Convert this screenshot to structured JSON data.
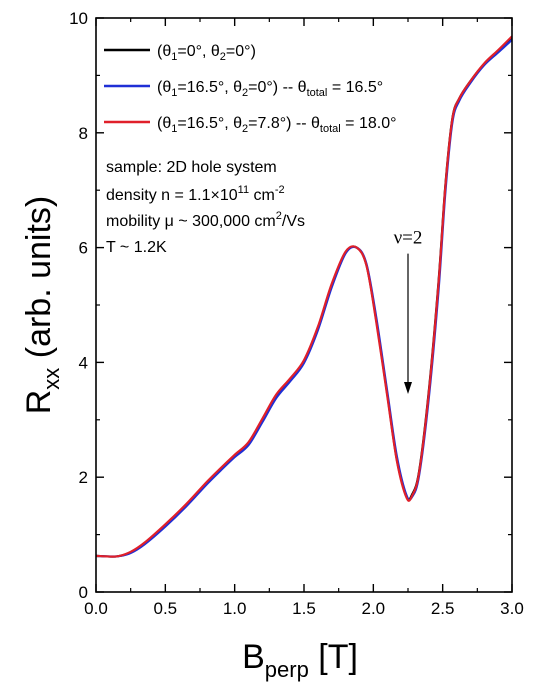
{
  "chart_data": {
    "type": "line",
    "xlabel": {
      "main": "B",
      "sub": "perp",
      "unit": " [T]"
    },
    "ylabel": {
      "main": "R",
      "sub": "xx",
      "unit": " (arb. units)"
    },
    "xlim": [
      0.0,
      3.0
    ],
    "ylim": [
      0,
      10
    ],
    "xticks": [
      0.0,
      0.5,
      1.0,
      1.5,
      2.0,
      2.5,
      3.0
    ],
    "xtick_labels": [
      "0.0",
      "0.5",
      "1.0",
      "1.5",
      "2.0",
      "2.5",
      "3.0"
    ],
    "yticks": [
      0,
      2,
      4,
      6,
      8,
      10
    ],
    "ytick_labels": [
      "0",
      "2",
      "4",
      "6",
      "8",
      "10"
    ],
    "grid": false,
    "legend_position": "top-left",
    "series": [
      {
        "name": "(θ1=0°, θ2=0°)",
        "legend": {
          "pre": "(θ",
          "s1": "1",
          "mid": "=0°, θ",
          "s2": "2",
          "post": "=0°)"
        },
        "color": "#000000",
        "x": [
          0.0,
          0.15,
          0.25,
          0.35,
          0.5,
          0.65,
          0.8,
          0.9,
          1.0,
          1.1,
          1.2,
          1.3,
          1.4,
          1.5,
          1.6,
          1.7,
          1.8,
          1.88,
          1.95,
          2.02,
          2.1,
          2.17,
          2.24,
          2.28,
          2.33,
          2.4,
          2.47,
          2.52,
          2.57,
          2.62,
          2.7,
          2.8,
          2.9,
          3.0
        ],
        "y": [
          0.63,
          0.62,
          0.69,
          0.85,
          1.17,
          1.52,
          1.91,
          2.15,
          2.38,
          2.6,
          3.0,
          3.42,
          3.7,
          4.02,
          4.6,
          5.35,
          5.92,
          6.0,
          5.7,
          4.75,
          3.45,
          2.3,
          1.66,
          1.7,
          2.1,
          3.5,
          5.4,
          7.1,
          8.25,
          8.6,
          8.9,
          9.2,
          9.42,
          9.65
        ]
      },
      {
        "name": "(θ1=16.5°, θ2=0°) -- θtotal = 16.5°",
        "legend": {
          "pre": "(θ",
          "s1": "1",
          "mid": "=16.5°, θ",
          "s2": "2",
          "post": "=0°) -- θ",
          "s3": "total",
          "tail": " = 16.5°"
        },
        "color": "#1f2fd6",
        "x": [
          0.0,
          0.15,
          0.25,
          0.35,
          0.5,
          0.65,
          0.8,
          0.9,
          1.0,
          1.1,
          1.2,
          1.3,
          1.4,
          1.5,
          1.6,
          1.7,
          1.8,
          1.88,
          1.95,
          2.02,
          2.1,
          2.17,
          2.24,
          2.28,
          2.33,
          2.4,
          2.47,
          2.52,
          2.57,
          2.62,
          2.7,
          2.8,
          2.9,
          3.0
        ],
        "y": [
          0.63,
          0.62,
          0.68,
          0.83,
          1.14,
          1.49,
          1.88,
          2.12,
          2.35,
          2.56,
          2.96,
          3.38,
          3.67,
          3.99,
          4.56,
          5.31,
          5.9,
          6.0,
          5.72,
          4.8,
          3.5,
          2.36,
          1.68,
          1.66,
          2.03,
          3.38,
          5.25,
          6.98,
          8.18,
          8.56,
          8.87,
          9.18,
          9.4,
          9.62
        ]
      },
      {
        "name": "(θ1=16.5°, θ2=7.8°) -- θtotal = 18.0°",
        "legend": {
          "pre": "(θ",
          "s1": "1",
          "mid": "=16.5°, θ",
          "s2": "2",
          "post": "=7.8°) -- θ",
          "s3": "total",
          "tail": " = 18.0°"
        },
        "color": "#e0202a",
        "x": [
          0.0,
          0.15,
          0.25,
          0.35,
          0.5,
          0.65,
          0.8,
          0.9,
          1.0,
          1.1,
          1.2,
          1.3,
          1.4,
          1.5,
          1.6,
          1.7,
          1.8,
          1.88,
          1.95,
          2.02,
          2.1,
          2.17,
          2.24,
          2.28,
          2.33,
          2.4,
          2.47,
          2.52,
          2.57,
          2.62,
          2.7,
          2.8,
          2.9,
          3.0
        ],
        "y": [
          0.63,
          0.62,
          0.7,
          0.86,
          1.18,
          1.53,
          1.92,
          2.16,
          2.39,
          2.61,
          3.02,
          3.44,
          3.72,
          4.04,
          4.62,
          5.37,
          5.93,
          6.0,
          5.69,
          4.72,
          3.42,
          2.28,
          1.64,
          1.68,
          2.08,
          3.47,
          5.37,
          7.08,
          8.24,
          8.6,
          8.9,
          9.21,
          9.44,
          9.68
        ]
      }
    ],
    "annotations": {
      "info_lines": [
        {
          "text": "sample: 2D hole system"
        },
        {
          "text": "density n = 1.1×10",
          "sup": "11",
          "tail": " cm",
          "sup2": "-2"
        },
        {
          "text": "mobility μ ~ 300,000 cm",
          "sup": "2",
          "tail": "/Vs"
        },
        {
          "text": "T ~ 1.2K"
        }
      ],
      "nu_label": "ν=2",
      "arrow_from": [
        2.25,
        6.0
      ],
      "arrow_to": [
        2.25,
        3.45
      ]
    }
  }
}
